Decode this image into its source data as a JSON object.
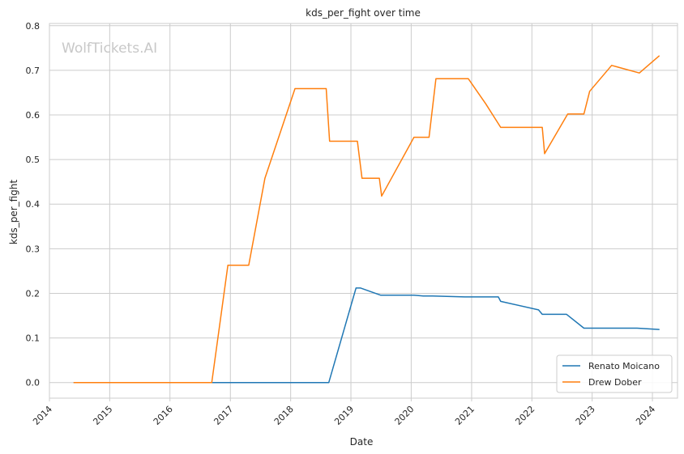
{
  "chart_data": {
    "type": "line",
    "title": "kds_per_fight over time",
    "xlabel": "Date",
    "ylabel": "kds_per_fight",
    "watermark": "WolfTickets.AI",
    "x_ticks": [
      "2014",
      "2015",
      "2016",
      "2017",
      "2018",
      "2019",
      "2020",
      "2021",
      "2022",
      "2023",
      "2024"
    ],
    "y_ticks": [
      "0.0",
      "0.1",
      "0.2",
      "0.3",
      "0.4",
      "0.5",
      "0.6",
      "0.7",
      "0.8"
    ],
    "xlim": [
      "2014-01-01",
      "2024-06-01"
    ],
    "ylim": [
      -0.035,
      0.805
    ],
    "grid": true,
    "legend_position": "bottom-right",
    "series": [
      {
        "name": "Renato Moicano",
        "color": "#1f77b4",
        "points": [
          [
            "2014-05-30",
            0.0
          ],
          [
            "2018-08-20",
            0.0
          ],
          [
            "2019-02-01",
            0.212
          ],
          [
            "2019-03-01",
            0.212
          ],
          [
            "2019-06-29",
            0.196
          ],
          [
            "2020-01-18",
            0.196
          ],
          [
            "2020-03-14",
            0.194
          ],
          [
            "2020-05-09",
            0.194
          ],
          [
            "2020-11-20",
            0.192
          ],
          [
            "2021-06-12",
            0.192
          ],
          [
            "2021-06-26",
            0.182
          ],
          [
            "2022-02-10",
            0.163
          ],
          [
            "2022-03-05",
            0.153
          ],
          [
            "2022-07-30",
            0.153
          ],
          [
            "2022-11-12",
            0.122
          ],
          [
            "2023-09-30",
            0.122
          ],
          [
            "2024-02-10",
            0.119
          ]
        ]
      },
      {
        "name": "Drew Dober",
        "color": "#ff7f0e",
        "points": [
          [
            "2014-05-30",
            0.0
          ],
          [
            "2016-09-10",
            0.0
          ],
          [
            "2016-12-17",
            0.263
          ],
          [
            "2017-04-22",
            0.263
          ],
          [
            "2017-07-29",
            0.458
          ],
          [
            "2018-01-27",
            0.659
          ],
          [
            "2018-08-04",
            0.659
          ],
          [
            "2018-08-25",
            0.541
          ],
          [
            "2019-02-09",
            0.541
          ],
          [
            "2019-03-09",
            0.458
          ],
          [
            "2019-06-22",
            0.458
          ],
          [
            "2019-07-06",
            0.418
          ],
          [
            "2020-01-18",
            0.55
          ],
          [
            "2020-04-18",
            0.55
          ],
          [
            "2020-05-30",
            0.681
          ],
          [
            "2020-12-12",
            0.681
          ],
          [
            "2021-03-27",
            0.625
          ],
          [
            "2021-06-26",
            0.572
          ],
          [
            "2022-03-05",
            0.572
          ],
          [
            "2022-03-19",
            0.513
          ],
          [
            "2022-08-06",
            0.602
          ],
          [
            "2022-11-12",
            0.602
          ],
          [
            "2022-12-17",
            0.653
          ],
          [
            "2023-04-29",
            0.711
          ],
          [
            "2023-10-14",
            0.694
          ],
          [
            "2024-02-10",
            0.732
          ]
        ]
      }
    ]
  }
}
